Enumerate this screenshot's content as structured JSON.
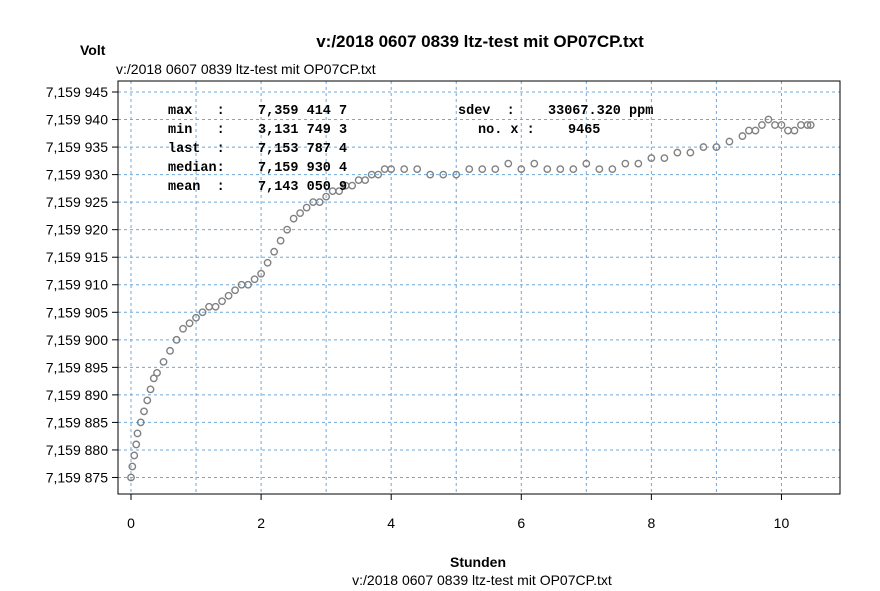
{
  "title": "v:/2018 0607 0839 ltz-test mit OP07CP.txt",
  "subtitle_top": "v:/2018 0607 0839 ltz-test mit OP07CP.txt",
  "subtitle_bottom": "v:/2018 0607 0839 ltz-test mit OP07CP.txt",
  "ylabel": "Volt",
  "xlabel": "Stunden",
  "stats": {
    "max_label": "max   :",
    "max_value": "7,359 414 7",
    "min_label": "min   :",
    "min_value": "3,131 749 3",
    "last_label": "last  :",
    "last_value": "7,153 787 4",
    "median_label": "median:",
    "median_value": "7,159 930 4",
    "mean_label": "mean  :",
    "mean_value": "7,143 050 9",
    "sdev_label": "sdev  :",
    "sdev_value": "33067.320 ppm",
    "nox_label": "no. x :",
    "nox_value": "9465"
  },
  "colors": {
    "points": "#808080",
    "grid": "#6fa8dc",
    "frame": "#000000"
  },
  "chart_data": {
    "type": "scatter",
    "title": "v:/2018 0607 0839 ltz-test mit OP07CP.txt",
    "xlabel": "Stunden",
    "ylabel": "Volt",
    "xlim": [
      -0.2,
      10.9
    ],
    "ylim": [
      7.159872,
      7.159947
    ],
    "grid": true,
    "x_ticks": [
      0,
      2,
      4,
      6,
      8,
      10
    ],
    "x_tick_labels": [
      "0",
      "2",
      "4",
      "6",
      "8",
      "10"
    ],
    "y_ticks": [
      7.159875,
      7.15988,
      7.159885,
      7.15989,
      7.159895,
      7.1599,
      7.159905,
      7.15991,
      7.159915,
      7.15992,
      7.159925,
      7.15993,
      7.159935,
      7.15994,
      7.159945
    ],
    "y_tick_labels": [
      "7,159 875",
      "7,159 880",
      "7,159 885",
      "7,159 890",
      "7,159 895",
      "7,159 900",
      "7,159 905",
      "7,159 910",
      "7,159 915",
      "7,159 920",
      "7,159 925",
      "7,159 930",
      "7,159 935",
      "7,159 940",
      "7,159 945"
    ],
    "series": [
      {
        "x": [
          0.0,
          0.02,
          0.05,
          0.08,
          0.1,
          0.15,
          0.2,
          0.25,
          0.3,
          0.35,
          0.4,
          0.5,
          0.6,
          0.7,
          0.8,
          0.9,
          1.0,
          1.1,
          1.2,
          1.3,
          1.4,
          1.5,
          1.6,
          1.7,
          1.8,
          1.9,
          2.0,
          2.1,
          2.2,
          2.3,
          2.4,
          2.5,
          2.6,
          2.7,
          2.8,
          2.9,
          3.0,
          3.1,
          3.2,
          3.3,
          3.4,
          3.5,
          3.6,
          3.7,
          3.8,
          3.9,
          4.0,
          4.2,
          4.4,
          4.6,
          4.8,
          5.0,
          5.2,
          5.4,
          5.6,
          5.8,
          6.0,
          6.2,
          6.4,
          6.6,
          6.8,
          7.0,
          7.2,
          7.4,
          7.6,
          7.8,
          8.0,
          8.2,
          8.4,
          8.6,
          8.8,
          9.0,
          9.2,
          9.4,
          9.5,
          9.6,
          9.7,
          9.8,
          9.9,
          10.0,
          10.1,
          10.2,
          10.3,
          10.4,
          10.45
        ],
        "y": [
          7.159875,
          7.159877,
          7.159879,
          7.159881,
          7.159883,
          7.159885,
          7.159887,
          7.159889,
          7.159891,
          7.159893,
          7.159894,
          7.159896,
          7.159898,
          7.1599,
          7.159902,
          7.159903,
          7.159904,
          7.159905,
          7.159906,
          7.159906,
          7.159907,
          7.159908,
          7.159909,
          7.15991,
          7.15991,
          7.159911,
          7.159912,
          7.159914,
          7.159916,
          7.159918,
          7.15992,
          7.159922,
          7.159923,
          7.159924,
          7.159925,
          7.159925,
          7.159926,
          7.159927,
          7.159927,
          7.159928,
          7.159928,
          7.159929,
          7.159929,
          7.15993,
          7.15993,
          7.159931,
          7.159931,
          7.159931,
          7.159931,
          7.15993,
          7.15993,
          7.15993,
          7.159931,
          7.159931,
          7.159931,
          7.159932,
          7.159931,
          7.159932,
          7.159931,
          7.159931,
          7.159931,
          7.159932,
          7.159931,
          7.159931,
          7.159932,
          7.159932,
          7.159933,
          7.159933,
          7.159934,
          7.159934,
          7.159935,
          7.159935,
          7.159936,
          7.159937,
          7.159938,
          7.159938,
          7.159939,
          7.15994,
          7.159939,
          7.159939,
          7.159938,
          7.159938,
          7.159939,
          7.159939,
          7.159939
        ]
      }
    ]
  }
}
